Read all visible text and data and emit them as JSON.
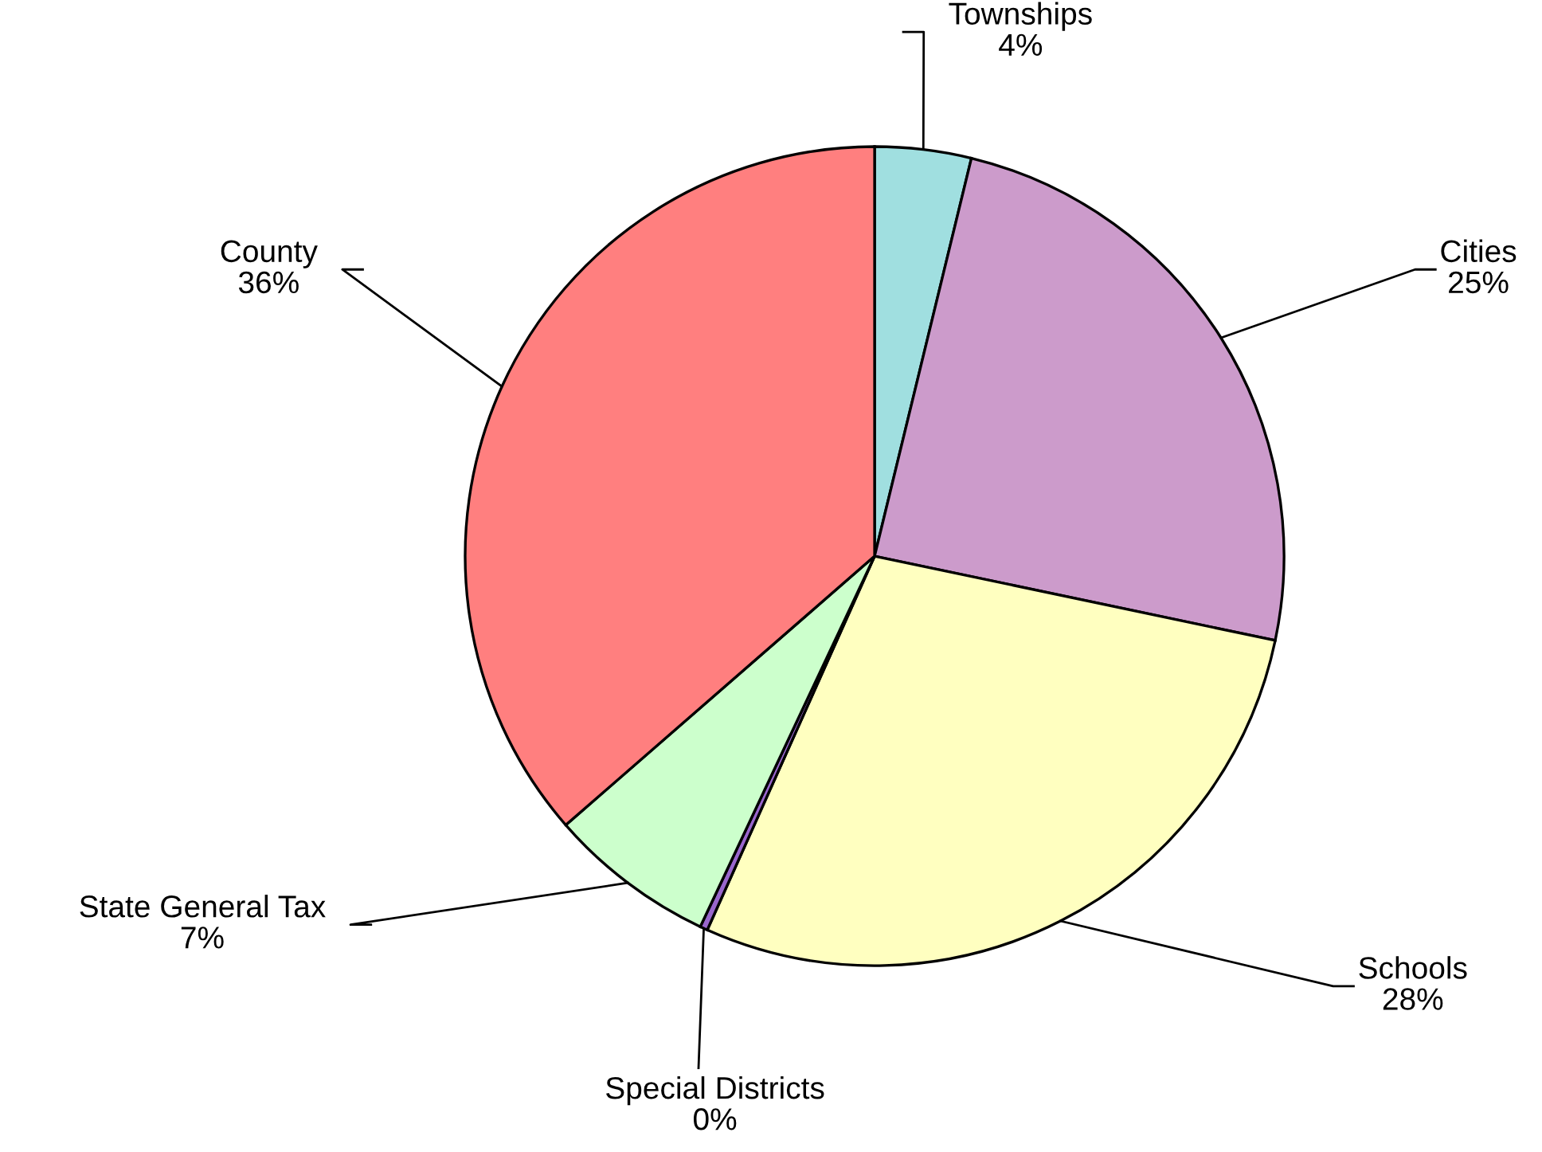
{
  "chart_data": {
    "type": "pie",
    "categories": [
      "Townships",
      "Cities",
      "Schools",
      "Special Districts",
      "State General Tax",
      "County"
    ],
    "values": [
      3.8,
      24.5,
      28.4,
      0.3,
      6.6,
      36.4
    ],
    "value_labels": [
      "4%",
      "25%",
      "28%",
      "0%",
      "7%",
      "36%"
    ],
    "colors": [
      "#a0dfe0",
      "#cc9bcb",
      "#ffffc0",
      "#9966cc",
      "#ccffcc",
      "#ff7f7f"
    ],
    "legend": false
  }
}
